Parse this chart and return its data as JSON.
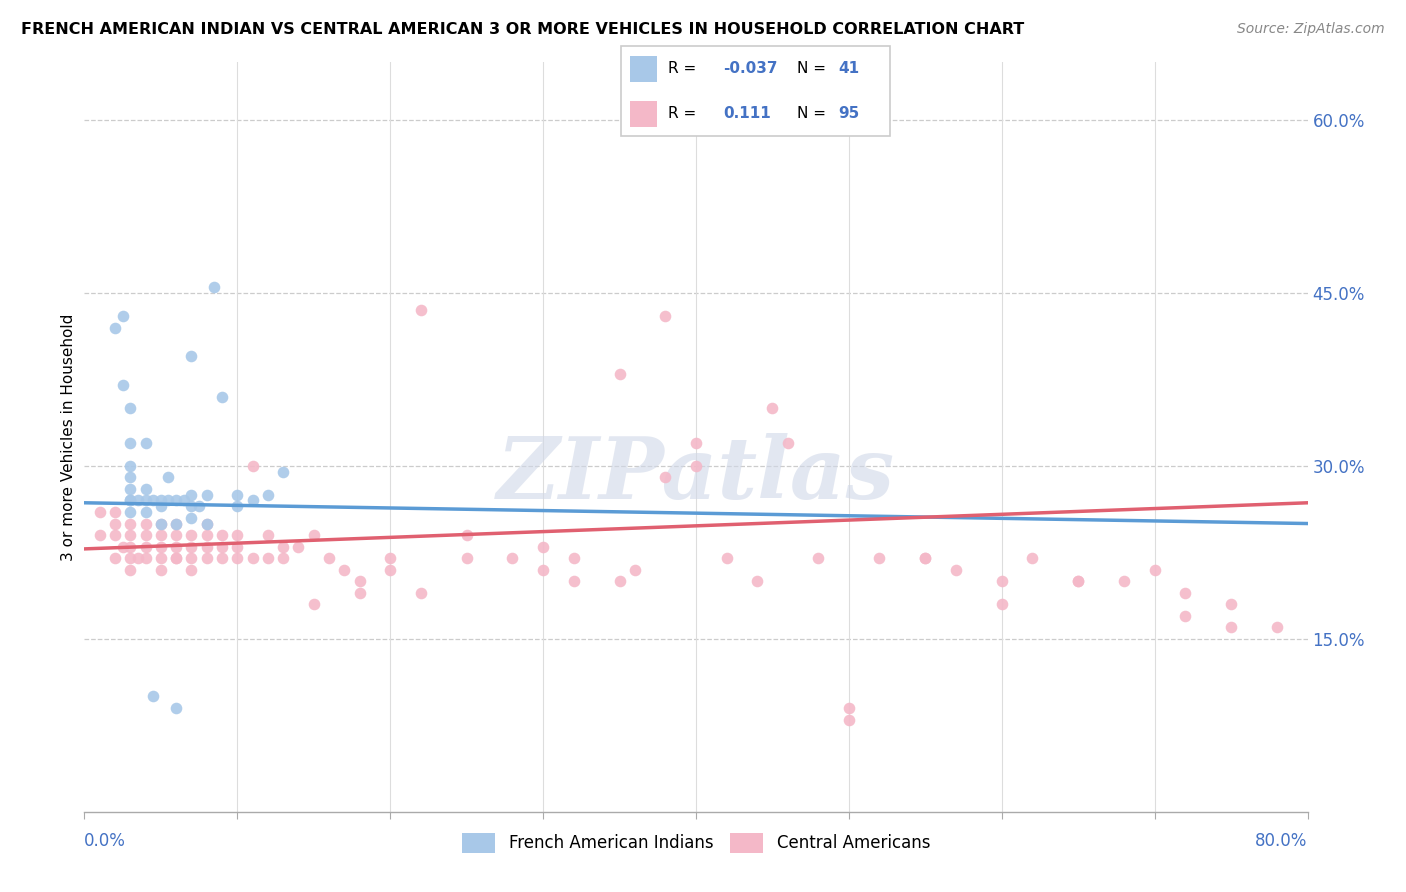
{
  "title": "FRENCH AMERICAN INDIAN VS CENTRAL AMERICAN 3 OR MORE VEHICLES IN HOUSEHOLD CORRELATION CHART",
  "source": "Source: ZipAtlas.com",
  "ylabel": "3 or more Vehicles in Household",
  "color_blue": "#a8c8e8",
  "color_blue_line": "#5b9bd5",
  "color_pink": "#f4b8c8",
  "color_pink_line": "#e06070",
  "color_axis_label": "#4472c4",
  "watermark": "ZIPatlas",
  "xlim": [
    0.0,
    0.8
  ],
  "ylim": [
    0.0,
    0.65
  ],
  "blue_x": [
    0.02,
    0.025,
    0.025,
    0.03,
    0.03,
    0.03,
    0.03,
    0.03,
    0.03,
    0.03,
    0.03,
    0.035,
    0.04,
    0.04,
    0.04,
    0.04,
    0.045,
    0.05,
    0.05,
    0.05,
    0.055,
    0.055,
    0.06,
    0.06,
    0.065,
    0.07,
    0.07,
    0.07,
    0.07,
    0.075,
    0.08,
    0.08,
    0.085,
    0.09,
    0.1,
    0.1,
    0.11,
    0.12,
    0.13,
    0.045,
    0.06
  ],
  "blue_y": [
    0.42,
    0.43,
    0.37,
    0.26,
    0.27,
    0.28,
    0.29,
    0.3,
    0.32,
    0.27,
    0.35,
    0.27,
    0.26,
    0.27,
    0.28,
    0.32,
    0.27,
    0.25,
    0.265,
    0.27,
    0.27,
    0.29,
    0.25,
    0.27,
    0.27,
    0.255,
    0.265,
    0.275,
    0.395,
    0.265,
    0.25,
    0.275,
    0.455,
    0.36,
    0.265,
    0.275,
    0.27,
    0.275,
    0.295,
    0.1,
    0.09
  ],
  "pink_x": [
    0.01,
    0.01,
    0.02,
    0.02,
    0.02,
    0.02,
    0.025,
    0.03,
    0.03,
    0.03,
    0.03,
    0.03,
    0.035,
    0.04,
    0.04,
    0.04,
    0.04,
    0.05,
    0.05,
    0.05,
    0.05,
    0.05,
    0.06,
    0.06,
    0.06,
    0.06,
    0.07,
    0.07,
    0.07,
    0.07,
    0.08,
    0.08,
    0.08,
    0.09,
    0.09,
    0.09,
    0.1,
    0.1,
    0.1,
    0.11,
    0.11,
    0.12,
    0.12,
    0.13,
    0.13,
    0.14,
    0.15,
    0.16,
    0.17,
    0.18,
    0.2,
    0.22,
    0.25,
    0.28,
    0.3,
    0.32,
    0.35,
    0.36,
    0.38,
    0.4,
    0.42,
    0.44,
    0.46,
    0.48,
    0.5,
    0.52,
    0.55,
    0.57,
    0.6,
    0.62,
    0.65,
    0.68,
    0.7,
    0.72,
    0.75,
    0.78,
    0.35,
    0.22,
    0.4,
    0.18,
    0.25,
    0.3,
    0.45,
    0.5,
    0.6,
    0.2,
    0.38,
    0.65,
    0.72,
    0.75,
    0.15,
    0.08,
    0.06,
    0.55,
    0.32
  ],
  "pink_y": [
    0.24,
    0.26,
    0.22,
    0.24,
    0.25,
    0.26,
    0.23,
    0.21,
    0.22,
    0.23,
    0.24,
    0.25,
    0.22,
    0.22,
    0.23,
    0.24,
    0.25,
    0.21,
    0.22,
    0.23,
    0.24,
    0.25,
    0.22,
    0.23,
    0.24,
    0.25,
    0.21,
    0.22,
    0.23,
    0.24,
    0.22,
    0.23,
    0.25,
    0.22,
    0.23,
    0.24,
    0.22,
    0.23,
    0.24,
    0.22,
    0.3,
    0.22,
    0.24,
    0.22,
    0.23,
    0.23,
    0.24,
    0.22,
    0.21,
    0.2,
    0.21,
    0.435,
    0.22,
    0.22,
    0.21,
    0.22,
    0.38,
    0.21,
    0.29,
    0.32,
    0.22,
    0.2,
    0.32,
    0.22,
    0.08,
    0.22,
    0.22,
    0.21,
    0.2,
    0.22,
    0.2,
    0.2,
    0.21,
    0.19,
    0.18,
    0.16,
    0.2,
    0.19,
    0.3,
    0.19,
    0.24,
    0.23,
    0.35,
    0.09,
    0.18,
    0.22,
    0.43,
    0.2,
    0.17,
    0.16,
    0.18,
    0.24,
    0.22,
    0.22,
    0.2
  ],
  "blue_line_x0": 0.0,
  "blue_line_x1": 0.8,
  "blue_line_y0": 0.268,
  "blue_line_y1": 0.25,
  "pink_line_x0": 0.0,
  "pink_line_x1": 0.8,
  "pink_line_y0": 0.228,
  "pink_line_y1": 0.268
}
